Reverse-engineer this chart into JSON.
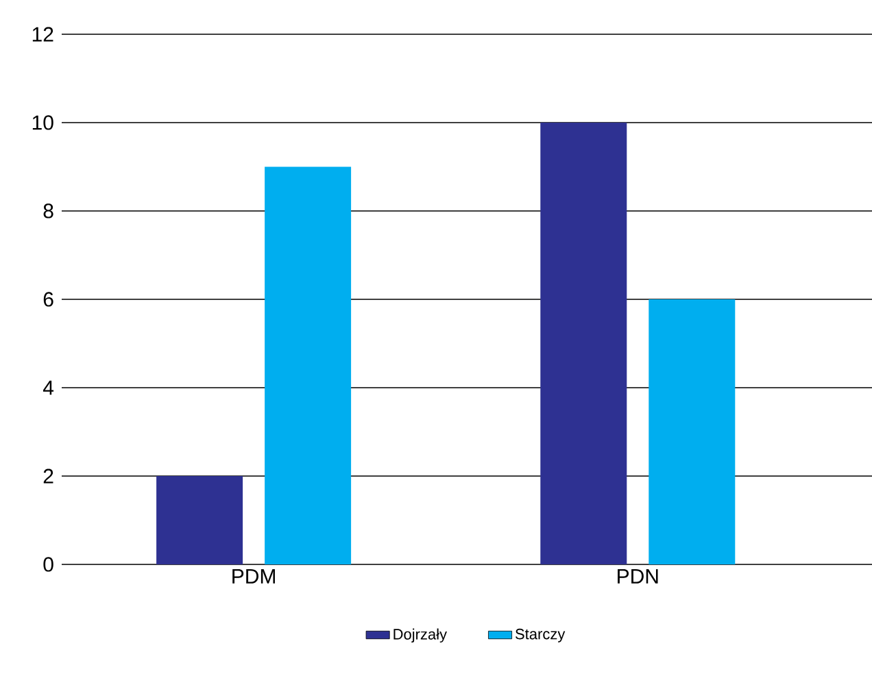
{
  "chart_data": {
    "type": "bar",
    "categories": [
      "PDM",
      "PDN"
    ],
    "series": [
      {
        "name": "Dojrzały",
        "color": "#2e3192",
        "values": [
          2,
          10
        ]
      },
      {
        "name": "Starczy",
        "color": "#00aeef",
        "values": [
          9,
          6
        ]
      }
    ],
    "ylim": [
      0,
      12
    ],
    "yticks": [
      0,
      2,
      4,
      6,
      8,
      10,
      12
    ],
    "grid": "y",
    "legend": "bottom"
  }
}
